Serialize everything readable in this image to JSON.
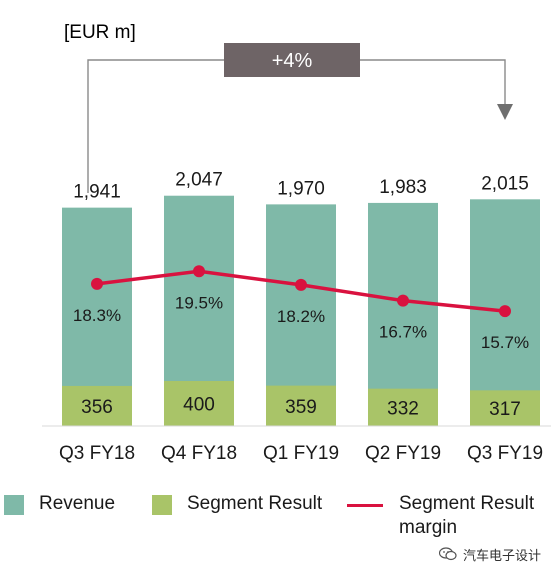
{
  "chart_data": {
    "type": "bar",
    "unit_label": "[EUR m]",
    "categories": [
      "Q3 FY18",
      "Q4 FY18",
      "Q1 FY19",
      "Q2 FY19",
      "Q3 FY19"
    ],
    "series": [
      {
        "name": "Revenue",
        "values": [
          1941,
          2047,
          1970,
          1983,
          2015
        ],
        "labels": [
          "1,941",
          "2,047",
          "1,970",
          "1,983",
          "2,015"
        ],
        "color": "#7fb9a8"
      },
      {
        "name": "Segment Result",
        "values": [
          356,
          400,
          359,
          332,
          317
        ],
        "labels": [
          "356",
          "400",
          "359",
          "332",
          "317"
        ],
        "color": "#a9c468"
      }
    ],
    "margin_series": {
      "name": "Segment Result margin",
      "values": [
        18.3,
        19.5,
        18.2,
        16.7,
        15.7
      ],
      "labels": [
        "18.3%",
        "19.5%",
        "18.2%",
        "16.7%",
        "15.7%"
      ],
      "color": "#d9123f"
    },
    "growth_annotation": {
      "label": "+4%",
      "from": "Q3 FY18",
      "to": "Q3 FY19",
      "box_color": "#6e6466"
    },
    "ylim": [
      0,
      2100
    ],
    "margin_ylim": [
      0,
      45
    ],
    "grid": false,
    "legend_position": "bottom"
  },
  "legend": {
    "revenue": "Revenue",
    "segment_result": "Segment Result",
    "margin_line1": "Segment Result",
    "margin_line2": "margin"
  },
  "watermark": {
    "text": "汽车电子设计",
    "icon": "wechat-icon"
  }
}
